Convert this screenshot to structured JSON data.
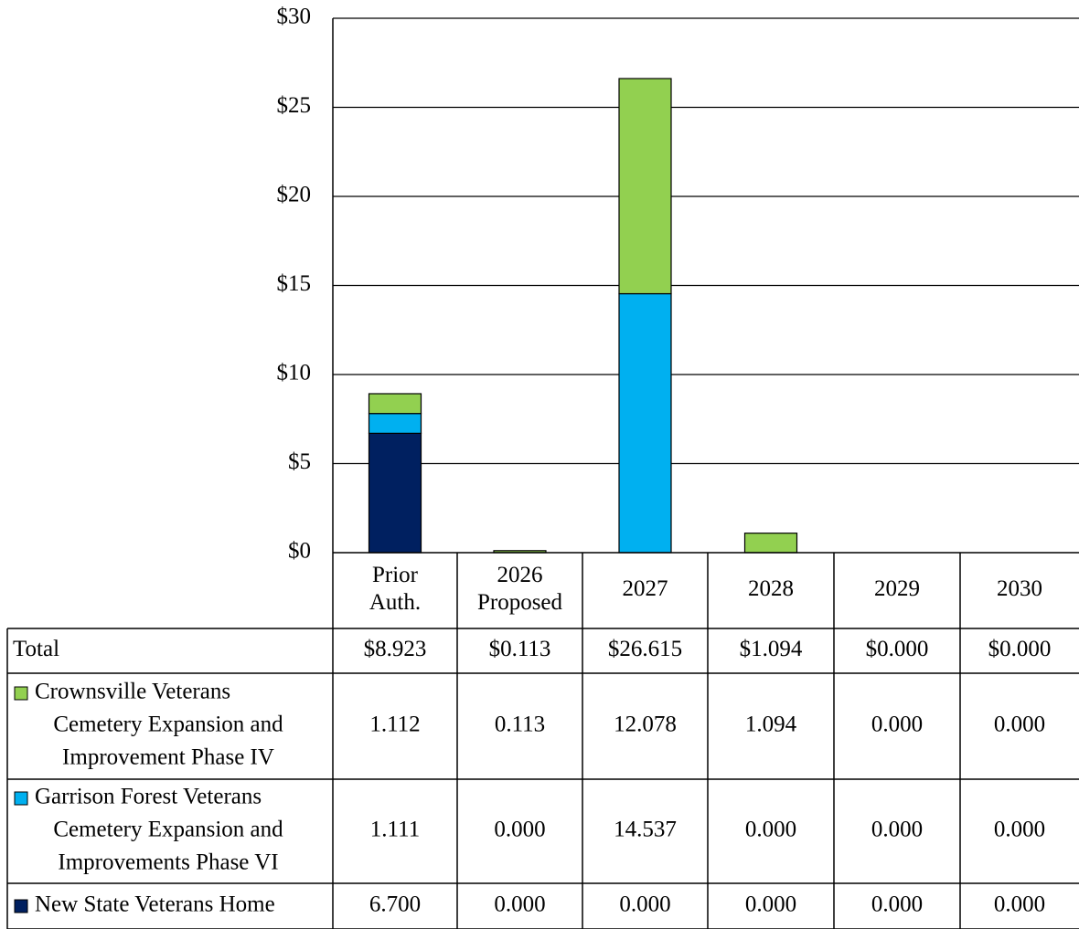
{
  "chart_data": {
    "type": "bar",
    "stacked": true,
    "categories": [
      "Prior Auth.",
      "2026 Proposed",
      "2027",
      "2028",
      "2029",
      "2030"
    ],
    "category_lines": [
      [
        "Prior",
        "Auth."
      ],
      [
        "2026",
        "Proposed"
      ],
      [
        "2027"
      ],
      [
        "2028"
      ],
      [
        "2029"
      ],
      [
        "2030"
      ]
    ],
    "ylim": [
      0,
      30
    ],
    "ytick_values": [
      0,
      5,
      10,
      15,
      20,
      25,
      30
    ],
    "ytick_labels": [
      "$0",
      "$5",
      "$10",
      "$15",
      "$20",
      "$25",
      "$30"
    ],
    "grid": true,
    "total": {
      "label": "Total",
      "values": [
        "$8.923",
        "$0.113",
        "$26.615",
        "$1.094",
        "$0.000",
        "$0.000"
      ]
    },
    "series": [
      {
        "name": "Crownsville Veterans Cemetery Expansion and Improvement Phase IV",
        "name_lines": [
          "Crownsville Veterans",
          "Cemetery Expansion and",
          "Improvement Phase IV"
        ],
        "color": "#92d050",
        "values": [
          1.112,
          0.113,
          12.078,
          1.094,
          0.0,
          0.0
        ],
        "labels": [
          "1.112",
          "0.113",
          "12.078",
          "1.094",
          "0.000",
          "0.000"
        ]
      },
      {
        "name": "Garrison Forest Veterans Cemetery Expansion and Improvements Phase VI",
        "name_lines": [
          "Garrison Forest Veterans",
          "Cemetery Expansion and",
          "Improvements Phase VI"
        ],
        "color": "#00b0f0",
        "values": [
          1.111,
          0.0,
          14.537,
          0.0,
          0.0,
          0.0
        ],
        "labels": [
          "1.111",
          "0.000",
          "14.537",
          "0.000",
          "0.000",
          "0.000"
        ]
      },
      {
        "name": "New State Veterans Home",
        "name_lines": [
          "New State Veterans Home"
        ],
        "color": "#002060",
        "values": [
          6.7,
          0.0,
          0.0,
          0.0,
          0.0,
          0.0
        ],
        "labels": [
          "6.700",
          "0.000",
          "0.000",
          "0.000",
          "0.000",
          "0.000"
        ]
      }
    ],
    "stack_order": [
      2,
      1,
      0
    ]
  }
}
